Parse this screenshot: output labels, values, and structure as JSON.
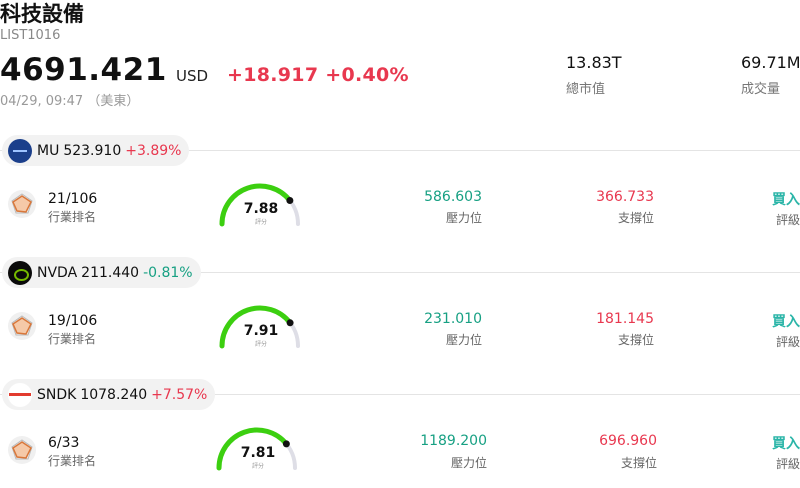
{
  "header": {
    "title": "科技設備",
    "code": "LIST1016",
    "price": "4691.421",
    "currency": "USD",
    "change": "+18.917 +0.40%",
    "time": "04/29, 09:47 （美東）",
    "market_cap_value": "13.83T",
    "market_cap_label": "總市值",
    "volume_value": "69.71M",
    "volume_label": "成交量"
  },
  "labels": {
    "rank": "行業排名",
    "pressure": "壓力位",
    "support": "支撐位",
    "rating": "評級",
    "gauge_sub": "評分"
  },
  "stocks": [
    {
      "symbol": "MU",
      "price": "523.910",
      "pct": "+3.89%",
      "rank": "21/106",
      "score": "7.88",
      "score_fraction": 0.788,
      "pressure": "586.603",
      "support": "366.733",
      "rating": "買入"
    },
    {
      "symbol": "NVDA",
      "price": "211.440",
      "pct": "-0.81%",
      "rank": "19/106",
      "score": "7.91",
      "score_fraction": 0.791,
      "pressure": "231.010",
      "support": "181.145",
      "rating": "買入"
    },
    {
      "symbol": "SNDK",
      "price": "1078.240",
      "pct": "+7.57%",
      "rank": "6/33",
      "score": "7.81",
      "score_fraction": 0.781,
      "pressure": "1189.200",
      "support": "696.960",
      "rating": "買入"
    }
  ],
  "colors": {
    "up": "#e8384f",
    "down": "#17a083",
    "gauge_fill": "#3ccf10",
    "gauge_track": "#dedee6",
    "rating": "#2bb5a8"
  }
}
